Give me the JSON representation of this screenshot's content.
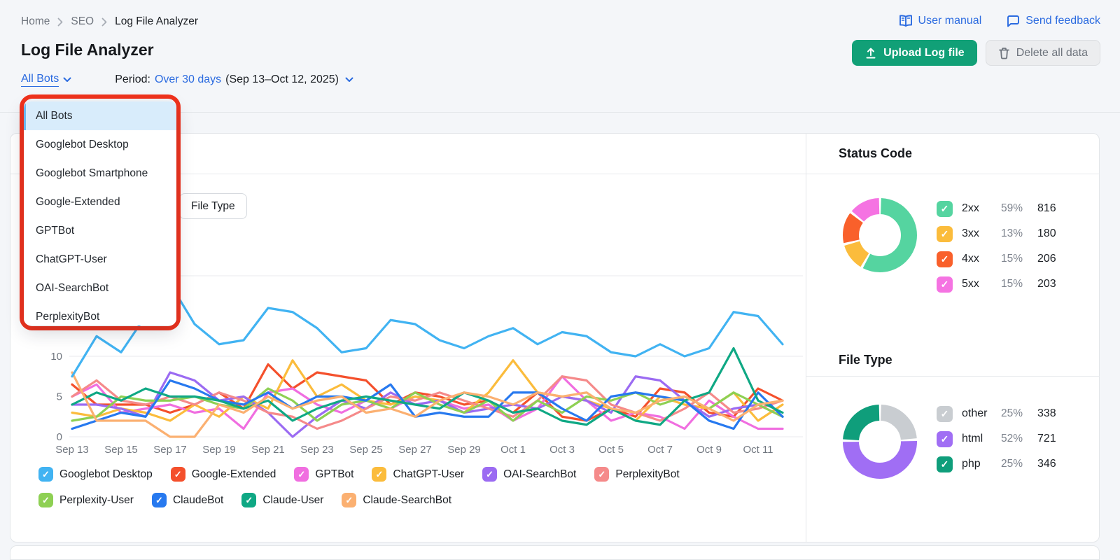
{
  "breadcrumb": {
    "items": [
      "Home",
      "SEO",
      "Log File Analyzer"
    ]
  },
  "header": {
    "title": "Log File Analyzer",
    "user_manual": "User manual",
    "send_feedback": "Send feedback",
    "upload_button": "Upload Log file",
    "delete_button": "Delete all data"
  },
  "filters": {
    "bot_filter": "All Bots",
    "period_label": "Period:",
    "period_value": "Over 30 days",
    "period_range": "(Sep 13–Oct 12, 2025)"
  },
  "dropdown": {
    "selected": "All Bots",
    "items": [
      "All Bots",
      "Googlebot Desktop",
      "Googlebot Smartphone",
      "Google-Extended",
      "GPTBot",
      "ChatGPT-User",
      "OAI-SearchBot",
      "PerplexityBot"
    ]
  },
  "tabs": {
    "file_type": "File Type"
  },
  "icons": {
    "check": "✓"
  },
  "colors": {
    "accent_blue": "#2B6BE0",
    "button_green": "#11A077",
    "annotation_red": "#F0321C"
  },
  "chart_data": {
    "line": {
      "type": "line",
      "ylim": [
        0,
        20
      ],
      "yticks": [
        0,
        5,
        10,
        15,
        20
      ],
      "gridlines": [
        0,
        10,
        20
      ],
      "x_labels": [
        "Sep 13",
        "Sep 15",
        "Sep 17",
        "Sep 19",
        "Sep 21",
        "Sep 23",
        "Sep 25",
        "Sep 27",
        "Sep 29",
        "Oct 1",
        "Oct 3",
        "Oct 5",
        "Oct 7",
        "Oct 9",
        "Oct 11"
      ],
      "days": [
        "Sep 13",
        "Sep 14",
        "Sep 15",
        "Sep 16",
        "Sep 17",
        "Sep 18",
        "Sep 19",
        "Sep 20",
        "Sep 21",
        "Sep 22",
        "Sep 23",
        "Sep 24",
        "Sep 25",
        "Sep 26",
        "Sep 27",
        "Sep 28",
        "Sep 29",
        "Sep 30",
        "Oct 1",
        "Oct 2",
        "Oct 3",
        "Oct 4",
        "Oct 5",
        "Oct 6",
        "Oct 7",
        "Oct 8",
        "Oct 9",
        "Oct 10",
        "Oct 11",
        "Oct 12"
      ],
      "series": [
        {
          "name": "Googlebot Desktop",
          "color": "#41B3F2",
          "values": [
            7.5,
            12.5,
            10.5,
            15,
            19,
            14,
            11.5,
            12,
            16,
            15.5,
            13.5,
            10.5,
            11,
            14.5,
            14,
            12,
            11,
            12.5,
            13.5,
            11.5,
            13,
            12.5,
            10.5,
            10,
            11.5,
            10,
            11,
            15.5,
            15,
            11.5
          ]
        },
        {
          "name": "Google-Extended",
          "color": "#F4502C",
          "values": [
            6.5,
            4,
            4,
            4,
            3,
            4,
            5.5,
            3.5,
            9,
            6,
            8,
            7.5,
            7,
            4,
            5.5,
            5,
            4,
            4.5,
            3,
            5.5,
            2.5,
            2,
            3.5,
            2.5,
            6,
            5.5,
            3,
            2.5,
            6,
            4.5
          ]
        },
        {
          "name": "GPTBot",
          "color": "#F06EE0",
          "values": [
            5,
            6.5,
            3,
            3.5,
            4,
            3,
            3.5,
            1,
            5.5,
            6,
            4,
            3,
            4.5,
            3.5,
            5,
            4.5,
            3.5,
            4,
            2,
            3.5,
            7.5,
            4.5,
            2,
            3,
            2.5,
            1,
            4.5,
            2.5,
            1,
            1
          ]
        },
        {
          "name": "ChatGPT-User",
          "color": "#FBBC3C",
          "values": [
            3,
            2.5,
            3.5,
            3,
            2,
            4,
            2.5,
            5,
            3.5,
            9.5,
            5,
            6.5,
            4.5,
            4,
            5,
            4.5,
            3,
            5.5,
            9.5,
            5.5,
            5,
            4.5,
            3.5,
            2,
            5,
            4,
            3.5,
            5.5,
            2,
            4
          ]
        },
        {
          "name": "OAI-SearchBot",
          "color": "#9B6BF2",
          "values": [
            4,
            4,
            3.5,
            2.5,
            8,
            7,
            4.5,
            5,
            3,
            0,
            2.5,
            4.5,
            3.5,
            5.5,
            4,
            4.5,
            3,
            3.5,
            4,
            3.5,
            5,
            4.5,
            3,
            7.5,
            7,
            4.5,
            2.5,
            3.5,
            4,
            2.5
          ]
        },
        {
          "name": "PerplexityBot",
          "color": "#F58A8A",
          "values": [
            5,
            7,
            4.5,
            4,
            5,
            4,
            5.5,
            4.5,
            3,
            2.5,
            1,
            2,
            3.5,
            5,
            4.5,
            5.5,
            4.5,
            3.5,
            2.5,
            4.5,
            7.5,
            7,
            4,
            3,
            2,
            3.5,
            5.5,
            3,
            3.5,
            4.5
          ]
        },
        {
          "name": "Perplexity-User",
          "color": "#8ED053",
          "values": [
            2,
            2.5,
            5,
            4.5,
            4.5,
            5,
            4,
            3.5,
            6,
            4.5,
            2,
            4,
            4.5,
            3.5,
            5.5,
            4,
            3,
            4.5,
            2,
            4.5,
            3,
            5,
            4.5,
            5.5,
            4,
            5,
            3.5,
            5.5,
            4,
            2.5
          ]
        },
        {
          "name": "ClaudeBot",
          "color": "#2779EF",
          "values": [
            1,
            2,
            3,
            2.5,
            7,
            6,
            4.5,
            4,
            5.5,
            3.5,
            5,
            5,
            4.5,
            6.5,
            2.5,
            3,
            2.5,
            2.5,
            5.5,
            5.5,
            3.5,
            2,
            5,
            5.5,
            5,
            4.5,
            2,
            1,
            5.5,
            2.5
          ]
        },
        {
          "name": "Claude-User",
          "color": "#0FA884",
          "values": [
            4,
            5.5,
            4.5,
            6,
            5,
            5,
            4.5,
            3.5,
            4.5,
            2,
            3.5,
            4.5,
            5,
            4.5,
            4,
            3.5,
            5.5,
            4.5,
            3,
            3.5,
            2,
            1.5,
            3.5,
            2,
            1.5,
            4.5,
            5.5,
            11,
            4.5,
            3
          ]
        },
        {
          "name": "Claude-SearchBot",
          "color": "#FBB071",
          "values": [
            8,
            2,
            2,
            2,
            0,
            0,
            4,
            3,
            5,
            3.5,
            4.5,
            5,
            3,
            3.5,
            2.5,
            4.5,
            5.5,
            5,
            4,
            5.5,
            5,
            5.5,
            3.5,
            3,
            4.5,
            5,
            3.5,
            2,
            4,
            4.5
          ]
        }
      ]
    },
    "status_code": {
      "type": "donut",
      "title": "Status Code",
      "slices": [
        {
          "label": "2xx",
          "pct": "59%",
          "count": 816,
          "color": "#55D4A0"
        },
        {
          "label": "3xx",
          "pct": "13%",
          "count": 180,
          "color": "#FBBC3C"
        },
        {
          "label": "4xx",
          "pct": "15%",
          "count": 206,
          "color": "#F9602B"
        },
        {
          "label": "5xx",
          "pct": "15%",
          "count": 203,
          "color": "#F573E2"
        }
      ]
    },
    "file_type": {
      "type": "donut",
      "title": "File Type",
      "slices": [
        {
          "label": "other",
          "pct": "25%",
          "count": 338,
          "color": "#C9CDD1"
        },
        {
          "label": "html",
          "pct": "52%",
          "count": 721,
          "color": "#A06EF4"
        },
        {
          "label": "php",
          "pct": "25%",
          "count": 346,
          "color": "#0F9E7B"
        }
      ]
    }
  }
}
